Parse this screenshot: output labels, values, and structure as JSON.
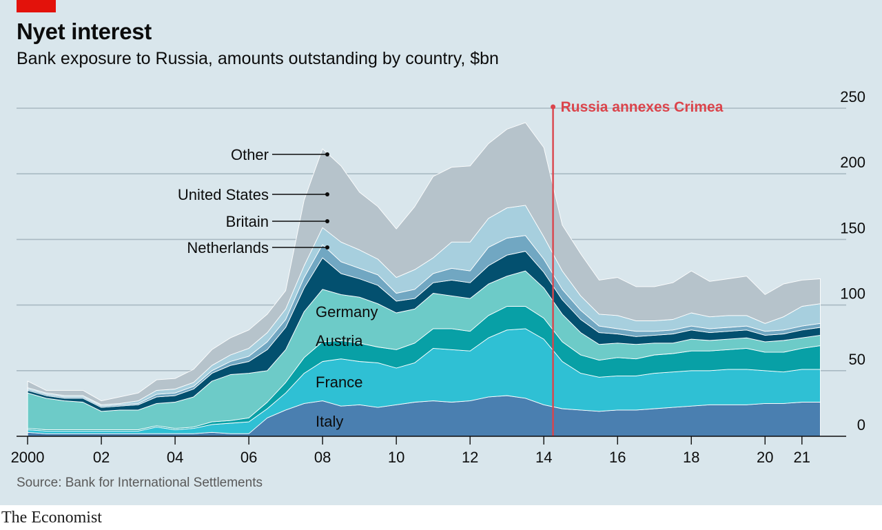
{
  "header": {
    "title": "Nyet interest",
    "subtitle": "Bank exposure to Russia, amounts outstanding by country, $bn"
  },
  "footer": {
    "source": "Source: Bank for International Settlements",
    "brand": "The Economist"
  },
  "colors": {
    "background": "#d9e6ec",
    "brand_red": "#e3120b",
    "annotation_red": "#db444b",
    "Italy": "#4a7fb0",
    "France": "#2fc0d4",
    "Austria": "#08a0a6",
    "Germany": "#6dcbc8",
    "Netherlands": "#03506f",
    "Britain": "#71a7c2",
    "United States": "#a7cfde",
    "Other": "#b6c3cb"
  },
  "chart_data": {
    "type": "area",
    "stacked": true,
    "title": "Nyet interest",
    "subtitle": "Bank exposure to Russia, amounts outstanding by country, $bn",
    "ylim": [
      0,
      250
    ],
    "yticks": [
      0,
      50,
      100,
      150,
      200,
      250
    ],
    "xlim": [
      1999.7,
      2022.2
    ],
    "xticks": [
      {
        "value": 2000,
        "label": "2000"
      },
      {
        "value": 2002,
        "label": "02"
      },
      {
        "value": 2004,
        "label": "04"
      },
      {
        "value": 2006,
        "label": "06"
      },
      {
        "value": 2008,
        "label": "08"
      },
      {
        "value": 2010,
        "label": "10"
      },
      {
        "value": 2012,
        "label": "12"
      },
      {
        "value": 2014,
        "label": "14"
      },
      {
        "value": 2016,
        "label": "16"
      },
      {
        "value": 2018,
        "label": "18"
      },
      {
        "value": 2020,
        "label": "20"
      },
      {
        "value": 2021,
        "label": "21"
      }
    ],
    "y_axis_position": "right",
    "grid": true,
    "x": [
      2000.0,
      2000.5,
      2001.0,
      2001.5,
      2002.0,
      2002.5,
      2003.0,
      2003.5,
      2004.0,
      2004.5,
      2005.0,
      2005.5,
      2006.0,
      2006.5,
      2007.0,
      2007.5,
      2008.0,
      2008.5,
      2009.0,
      2009.5,
      2010.0,
      2010.5,
      2011.0,
      2011.5,
      2012.0,
      2012.5,
      2013.0,
      2013.5,
      2014.0,
      2014.5,
      2015.0,
      2015.5,
      2016.0,
      2016.5,
      2017.0,
      2017.5,
      2018.0,
      2018.5,
      2019.0,
      2019.5,
      2020.0,
      2020.5,
      2021.0,
      2021.5
    ],
    "series": [
      {
        "name": "Italy",
        "values": [
          3,
          2,
          2,
          2,
          2,
          2,
          2,
          2,
          2,
          2,
          3,
          2,
          2,
          14,
          20,
          25,
          27,
          23,
          24,
          22,
          24,
          26,
          27,
          26,
          27,
          30,
          31,
          29,
          24,
          21,
          20,
          19,
          20,
          20,
          21,
          22,
          23,
          24,
          24,
          24,
          25,
          25,
          26,
          26
        ]
      },
      {
        "name": "France",
        "values": [
          2,
          2,
          2,
          2,
          2,
          2,
          2,
          5,
          3,
          4,
          6,
          8,
          9,
          7,
          13,
          23,
          30,
          36,
          33,
          34,
          28,
          30,
          40,
          40,
          38,
          45,
          50,
          53,
          50,
          36,
          28,
          26,
          26,
          26,
          27,
          27,
          27,
          26,
          27,
          27,
          25,
          24,
          25,
          25
        ]
      },
      {
        "name": "Austria",
        "values": [
          1,
          1,
          1,
          1,
          1,
          1,
          1,
          1,
          1,
          1,
          2,
          2,
          3,
          5,
          8,
          12,
          15,
          14,
          14,
          12,
          14,
          15,
          15,
          16,
          15,
          17,
          18,
          17,
          16,
          15,
          14,
          13,
          14,
          13,
          14,
          14,
          15,
          15,
          15,
          16,
          14,
          15,
          16,
          18
        ]
      },
      {
        "name": "Germany",
        "values": [
          27,
          24,
          22,
          21,
          14,
          15,
          15,
          17,
          20,
          23,
          31,
          35,
          34,
          24,
          25,
          35,
          40,
          35,
          35,
          33,
          28,
          26,
          27,
          25,
          25,
          24,
          23,
          27,
          23,
          21,
          17,
          12,
          11,
          11,
          9,
          8,
          9,
          8,
          8,
          8,
          8,
          9,
          8,
          8
        ]
      },
      {
        "name": "Netherlands",
        "values": [
          2,
          2,
          2,
          3,
          3,
          3,
          4,
          5,
          5,
          6,
          6,
          7,
          9,
          16,
          17,
          18,
          24,
          16,
          14,
          14,
          9,
          8,
          8,
          12,
          12,
          14,
          16,
          15,
          12,
          11,
          10,
          9,
          7,
          6,
          6,
          7,
          7,
          6,
          6,
          6,
          5,
          5,
          6,
          6
        ]
      },
      {
        "name": "Britain",
        "values": [
          1,
          1,
          1,
          1,
          1,
          1,
          1,
          2,
          2,
          2,
          2,
          3,
          4,
          6,
          6,
          8,
          10,
          9,
          8,
          8,
          6,
          7,
          7,
          9,
          9,
          14,
          13,
          12,
          10,
          8,
          7,
          5,
          4,
          4,
          3,
          3,
          3,
          3,
          3,
          3,
          3,
          3,
          3,
          3
        ]
      },
      {
        "name": "United States",
        "values": [
          1,
          1,
          1,
          1,
          1,
          1,
          2,
          3,
          3,
          3,
          4,
          5,
          6,
          7,
          8,
          9,
          13,
          15,
          14,
          12,
          12,
          15,
          12,
          20,
          22,
          22,
          23,
          23,
          17,
          14,
          11,
          9,
          10,
          8,
          8,
          8,
          10,
          9,
          9,
          8,
          6,
          10,
          15,
          15
        ]
      },
      {
        "name": "Other",
        "values": [
          5,
          2,
          4,
          4,
          3,
          5,
          6,
          8,
          8,
          10,
          12,
          13,
          14,
          14,
          14,
          50,
          60,
          58,
          44,
          40,
          37,
          48,
          62,
          57,
          58,
          57,
          60,
          63,
          68,
          35,
          32,
          26,
          29,
          26,
          26,
          28,
          32,
          27,
          28,
          30,
          22,
          25,
          20,
          19
        ]
      }
    ],
    "series_labels": [
      {
        "name": "Other",
        "text": "Other"
      },
      {
        "name": "United States",
        "text": "United States"
      },
      {
        "name": "Britain",
        "text": "Britain"
      },
      {
        "name": "Netherlands",
        "text": "Netherlands"
      },
      {
        "name": "Germany",
        "text": "Germany"
      },
      {
        "name": "Austria",
        "text": "Austria"
      },
      {
        "name": "France",
        "text": "France"
      },
      {
        "name": "Italy",
        "text": "Italy"
      }
    ],
    "annotations": [
      {
        "x": 2014.25,
        "label": "Russia annexes Crimea",
        "color": "#db444b"
      }
    ]
  }
}
